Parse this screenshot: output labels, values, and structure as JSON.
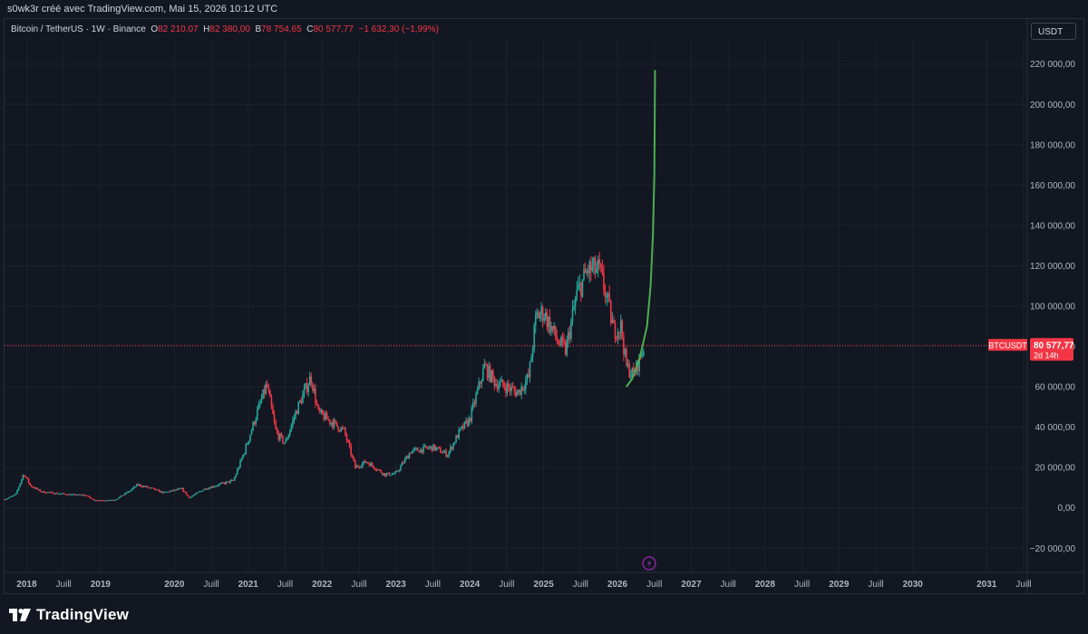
{
  "header": {
    "caption": "s0wk3r créé avec TradingView.com, Mai 15, 2026 10:12 UTC"
  },
  "legend": {
    "symbol": "Bitcoin / TetherUS · 1W · Binance",
    "open_label": "O",
    "open": "82 210,07",
    "high_label": "H",
    "high": "82 380,00",
    "low_label": "B",
    "low": "78 754,65",
    "close_label": "C",
    "close": "80 577,77",
    "change": "−1 632,30 (−1,99%)"
  },
  "currency_button": "USDT",
  "price_tag": {
    "symbol": "BTCUSDT",
    "price": "80 577,77",
    "countdown": "2d 14h"
  },
  "footer": {
    "brand": "TradingView"
  },
  "colors": {
    "up": "#26a69a",
    "down": "#f23645",
    "curve": "#4caf50",
    "background": "#131722",
    "grid": "#1e222d",
    "bolt": "#9c27b0"
  },
  "chart_data": {
    "type": "candlestick",
    "symbol": "BTCUSDT",
    "interval": "1W",
    "y_axis": {
      "range": [
        -32000,
        232000
      ],
      "ticks": [
        {
          "value": 220000,
          "label": "220 000,00"
        },
        {
          "value": 200000,
          "label": "200 000,00"
        },
        {
          "value": 180000,
          "label": "180 000,00"
        },
        {
          "value": 160000,
          "label": "160 000,00"
        },
        {
          "value": 140000,
          "label": "140 000,00"
        },
        {
          "value": 120000,
          "label": "120 000,00"
        },
        {
          "value": 100000,
          "label": "100 000,00"
        },
        {
          "value": 80000,
          "label": "80 000,00"
        },
        {
          "value": 60000,
          "label": "60 000,00"
        },
        {
          "value": 40000,
          "label": "40 000,00"
        },
        {
          "value": 20000,
          "label": "20 000,00"
        },
        {
          "value": 0,
          "label": "0,00"
        },
        {
          "value": -20000,
          "label": "−20 000,00"
        }
      ]
    },
    "x_axis": {
      "range": [
        2017.7,
        2031.55
      ],
      "ticks": [
        {
          "t": 2018.0,
          "label": "2018",
          "bold": true
        },
        {
          "t": 2018.5,
          "label": "Juill",
          "bold": false
        },
        {
          "t": 2019.0,
          "label": "2019",
          "bold": true
        },
        {
          "t": 2020.0,
          "label": "2020",
          "bold": true
        },
        {
          "t": 2020.5,
          "label": "Juill",
          "bold": false
        },
        {
          "t": 2021.0,
          "label": "2021",
          "bold": true
        },
        {
          "t": 2021.5,
          "label": "Juill",
          "bold": false
        },
        {
          "t": 2022.0,
          "label": "2022",
          "bold": true
        },
        {
          "t": 2022.5,
          "label": "Juill",
          "bold": false
        },
        {
          "t": 2023.0,
          "label": "2023",
          "bold": true
        },
        {
          "t": 2023.5,
          "label": "Juill",
          "bold": false
        },
        {
          "t": 2024.0,
          "label": "2024",
          "bold": true
        },
        {
          "t": 2024.5,
          "label": "Juill",
          "bold": false
        },
        {
          "t": 2025.0,
          "label": "2025",
          "bold": true
        },
        {
          "t": 2025.5,
          "label": "Juill",
          "bold": false
        },
        {
          "t": 2026.0,
          "label": "2026",
          "bold": true
        },
        {
          "t": 2026.5,
          "label": "Juill",
          "bold": false
        },
        {
          "t": 2027.0,
          "label": "2027",
          "bold": true
        },
        {
          "t": 2027.5,
          "label": "Juill",
          "bold": false
        },
        {
          "t": 2028.0,
          "label": "2028",
          "bold": true
        },
        {
          "t": 2028.5,
          "label": "Juill",
          "bold": false
        },
        {
          "t": 2029.0,
          "label": "2029",
          "bold": true
        },
        {
          "t": 2029.5,
          "label": "Juill",
          "bold": false
        },
        {
          "t": 2030.0,
          "label": "2030",
          "bold": true
        },
        {
          "t": 2031.0,
          "label": "2031",
          "bold": true
        },
        {
          "t": 2031.5,
          "label": "Juill",
          "bold": false
        }
      ]
    },
    "price_path": [
      [
        2017.7,
        4200
      ],
      [
        2017.85,
        6500
      ],
      [
        2017.96,
        17000
      ],
      [
        2018.05,
        11000
      ],
      [
        2018.2,
        8000
      ],
      [
        2018.4,
        7200
      ],
      [
        2018.6,
        6500
      ],
      [
        2018.8,
        6300
      ],
      [
        2018.9,
        4000
      ],
      [
        2019.0,
        3600
      ],
      [
        2019.2,
        4100
      ],
      [
        2019.4,
        8500
      ],
      [
        2019.5,
        11500
      ],
      [
        2019.7,
        9500
      ],
      [
        2019.85,
        7500
      ],
      [
        2020.1,
        9500
      ],
      [
        2020.2,
        5000
      ],
      [
        2020.4,
        9300
      ],
      [
        2020.6,
        11500
      ],
      [
        2020.8,
        13500
      ],
      [
        2020.95,
        28000
      ],
      [
        2021.1,
        45000
      ],
      [
        2021.25,
        61000
      ],
      [
        2021.38,
        37000
      ],
      [
        2021.5,
        32000
      ],
      [
        2021.65,
        48000
      ],
      [
        2021.85,
        65000
      ],
      [
        2021.95,
        47000
      ],
      [
        2022.15,
        42000
      ],
      [
        2022.3,
        38000
      ],
      [
        2022.45,
        20000
      ],
      [
        2022.6,
        23000
      ],
      [
        2022.85,
        16500
      ],
      [
        2023.0,
        17000
      ],
      [
        2023.2,
        28000
      ],
      [
        2023.5,
        30000
      ],
      [
        2023.7,
        26500
      ],
      [
        2023.85,
        37000
      ],
      [
        2024.0,
        44000
      ],
      [
        2024.2,
        70000
      ],
      [
        2024.35,
        62000
      ],
      [
        2024.5,
        60000
      ],
      [
        2024.65,
        57000
      ],
      [
        2024.8,
        65000
      ],
      [
        2024.9,
        95000
      ],
      [
        2025.0,
        97000
      ],
      [
        2025.2,
        82000
      ],
      [
        2025.3,
        78000
      ],
      [
        2025.45,
        106000
      ],
      [
        2025.6,
        118000
      ],
      [
        2025.75,
        118000
      ],
      [
        2025.85,
        105000
      ],
      [
        2025.95,
        88000
      ],
      [
        2026.05,
        90000
      ],
      [
        2026.12,
        70000
      ],
      [
        2026.22,
        66000
      ],
      [
        2026.37,
        80578
      ]
    ],
    "projection_curve": {
      "style": "green parabolic line",
      "points": [
        [
          2026.12,
          60000
        ],
        [
          2026.2,
          64000
        ],
        [
          2026.3,
          74000
        ],
        [
          2026.4,
          90000
        ],
        [
          2026.45,
          110000
        ],
        [
          2026.48,
          135000
        ],
        [
          2026.5,
          165000
        ],
        [
          2026.51,
          217000
        ]
      ]
    },
    "last_price": 80577.77,
    "grid": true
  }
}
